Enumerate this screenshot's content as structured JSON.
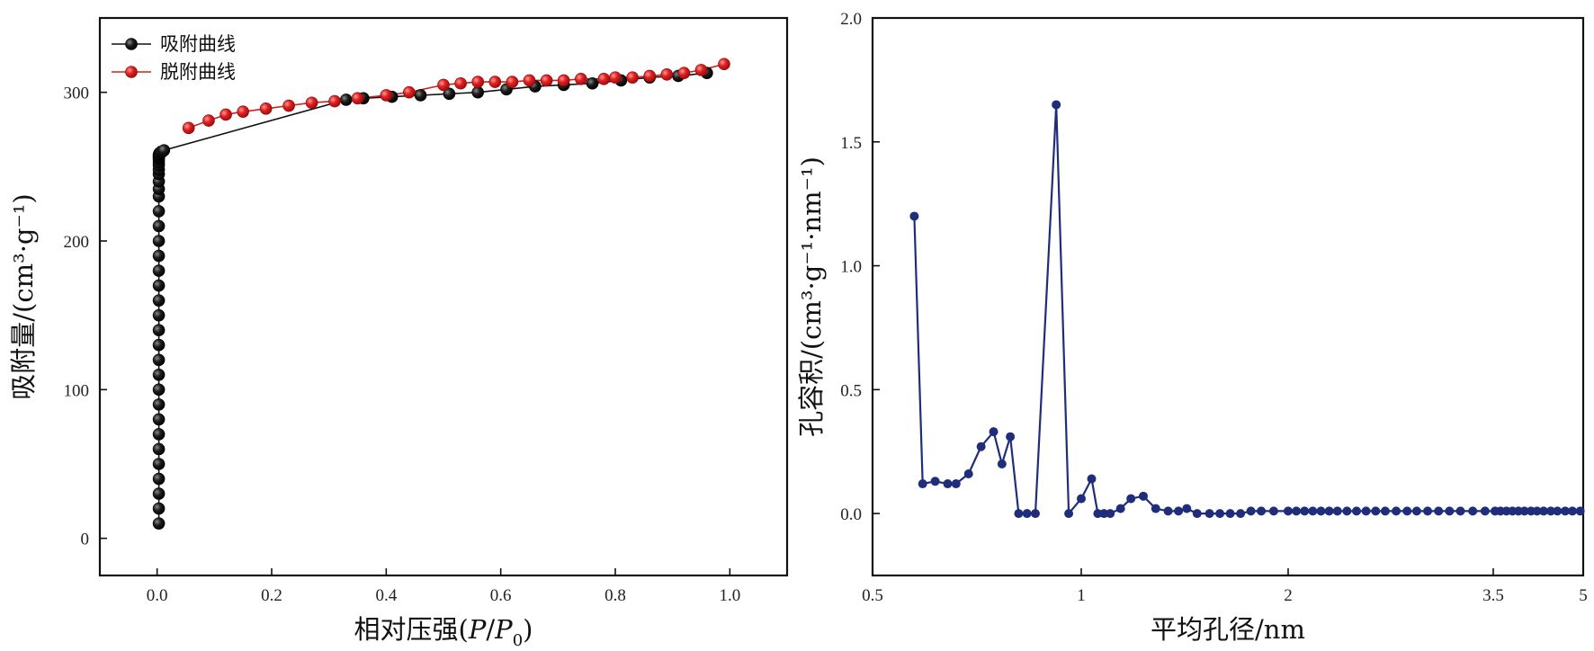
{
  "chart_data": [
    {
      "type": "scatter",
      "xlabel": "相对压强",
      "xlabel_parts": [
        "(",
        "P",
        "/",
        "P",
        "0",
        ")"
      ],
      "ylabel": "吸附量/(cm³·g⁻¹)",
      "xlim": [
        -0.1,
        1.1
      ],
      "ylim": [
        -25,
        350
      ],
      "xticks": [
        0.0,
        0.2,
        0.4,
        0.6,
        0.8,
        1.0
      ],
      "xtick_labels": [
        "0.0",
        "0.2",
        "0.4",
        "0.6",
        "0.8",
        "1.0"
      ],
      "yticks": [
        0,
        100,
        200,
        300
      ],
      "ytick_labels": [
        "0",
        "100",
        "200",
        "300"
      ],
      "grid": false,
      "legend_position": "top-left",
      "series": [
        {
          "name": "吸附曲线",
          "color": "#111111",
          "x": [
            0.003,
            0.003,
            0.003,
            0.003,
            0.003,
            0.003,
            0.003,
            0.003,
            0.003,
            0.003,
            0.003,
            0.003,
            0.003,
            0.003,
            0.003,
            0.003,
            0.003,
            0.003,
            0.003,
            0.003,
            0.003,
            0.003,
            0.003,
            0.003,
            0.003,
            0.003,
            0.003,
            0.003,
            0.003,
            0.003,
            0.003,
            0.003,
            0.003,
            0.004,
            0.005,
            0.007,
            0.009,
            0.012,
            0.33,
            0.36,
            0.41,
            0.46,
            0.51,
            0.56,
            0.61,
            0.66,
            0.71,
            0.76,
            0.81,
            0.86,
            0.91,
            0.96
          ],
          "y": [
            10,
            20,
            30,
            40,
            50,
            60,
            70,
            80,
            90,
            100,
            110,
            120,
            130,
            140,
            150,
            160,
            170,
            180,
            190,
            200,
            210,
            220,
            230,
            235,
            240,
            245,
            248,
            251,
            253,
            255,
            256,
            257,
            258,
            259,
            259,
            260,
            260,
            261,
            295,
            296,
            297,
            298,
            299,
            300,
            302,
            304,
            305,
            306,
            308,
            310,
            311,
            313
          ]
        },
        {
          "name": "脱附曲线",
          "color": "#cc2020",
          "x": [
            0.99,
            0.95,
            0.92,
            0.89,
            0.86,
            0.83,
            0.8,
            0.78,
            0.74,
            0.71,
            0.68,
            0.65,
            0.62,
            0.59,
            0.56,
            0.53,
            0.5,
            0.44,
            0.4,
            0.35,
            0.31,
            0.27,
            0.23,
            0.19,
            0.15,
            0.12,
            0.09,
            0.055
          ],
          "y": [
            319,
            315,
            313,
            312,
            311,
            310,
            310,
            309,
            309,
            308,
            308,
            308,
            307,
            307,
            307,
            306,
            305,
            300,
            298,
            296,
            294,
            293,
            291,
            289,
            287,
            285,
            281,
            276
          ]
        }
      ]
    },
    {
      "type": "line",
      "xlabel": "平均孔径/nm",
      "ylabel": "孔容积/(cm³·g⁻¹·nm⁻¹)",
      "xlim": [
        0.5,
        5
      ],
      "ylim": [
        -0.25,
        2.0
      ],
      "xticks": [
        0.5,
        1,
        2,
        3.5,
        5
      ],
      "xtick_labels": [
        "0.5",
        "1",
        "2",
        "3.5",
        "5"
      ],
      "yticks": [
        0.0,
        0.5,
        1.0,
        1.5,
        2.0
      ],
      "ytick_labels": [
        "0.0",
        "0.5",
        "1.0",
        "1.5",
        "2.0"
      ],
      "grid": false,
      "color": "#1f2d7a",
      "series": [
        {
          "x": [
            0.6,
            0.62,
            0.65,
            0.68,
            0.7,
            0.73,
            0.76,
            0.79,
            0.81,
            0.83,
            0.85,
            0.87,
            0.89,
            0.94,
            0.97,
            1.0,
            1.05,
            1.08,
            1.11,
            1.14,
            1.19,
            1.24,
            1.3,
            1.36,
            1.42,
            1.47,
            1.51,
            1.56,
            1.62,
            1.67,
            1.72,
            1.77,
            1.82,
            1.87,
            1.93,
            2.0,
            2.06,
            2.12,
            2.18,
            2.24,
            2.3,
            2.36,
            2.43,
            2.5,
            2.57,
            2.64,
            2.71,
            2.79,
            2.87,
            2.94,
            3.02,
            3.1,
            3.18,
            3.26,
            3.35,
            3.44,
            3.53,
            3.62,
            3.72,
            3.82,
            3.92,
            4.02,
            4.13,
            4.23,
            4.34,
            4.46,
            4.57,
            4.7,
            4.82,
            4.95
          ],
          "y": [
            1.2,
            0.12,
            0.13,
            0.12,
            0.12,
            0.16,
            0.27,
            0.33,
            0.2,
            0.31,
            0.0,
            0.0,
            0.0,
            1.65,
            0.0,
            0.06,
            0.14,
            0.0,
            0.0,
            0.0,
            0.02,
            0.06,
            0.07,
            0.02,
            0.01,
            0.01,
            0.02,
            0.0,
            0.0,
            0.0,
            0.0,
            0.0,
            0.01,
            0.01,
            0.01,
            0.01,
            0.01,
            0.01,
            0.01,
            0.01,
            0.01,
            0.01,
            0.01,
            0.01,
            0.01,
            0.01,
            0.01,
            0.01,
            0.01,
            0.01,
            0.01,
            0.01,
            0.01,
            0.01,
            0.01,
            0.01,
            0.01,
            0.01,
            0.01,
            0.01,
            0.01,
            0.01,
            0.01,
            0.01,
            0.01,
            0.01,
            0.01,
            0.01,
            0.01,
            0.01
          ]
        }
      ]
    }
  ]
}
